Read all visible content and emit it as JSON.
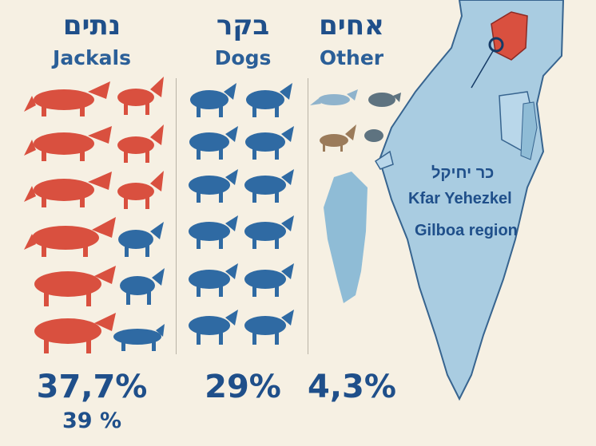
{
  "columns": [
    {
      "hebrew": "נתים",
      "english": "Jackals",
      "percent": "37,7%",
      "percent_secondary": "39 %"
    },
    {
      "hebrew": "בקר",
      "english": "Dogs",
      "percent": "29%"
    },
    {
      "hebrew": "אחים",
      "english": "Other",
      "percent": "4,3%"
    }
  ],
  "map": {
    "place_hebrew": "כר יחיקל",
    "place_english": "Kfar Yehezkel",
    "region": "Gilboa region"
  },
  "colors": {
    "red": "#d9503f",
    "blue": "#2f6aa3",
    "map": "#a9cce1",
    "mapStroke": "#37648f",
    "gray": "#8ba6b8",
    "brown": "#9b7b5a"
  },
  "icons": [
    "jackal-icon",
    "dog-icon",
    "small-animal-icon",
    "israel-map-icon"
  ]
}
